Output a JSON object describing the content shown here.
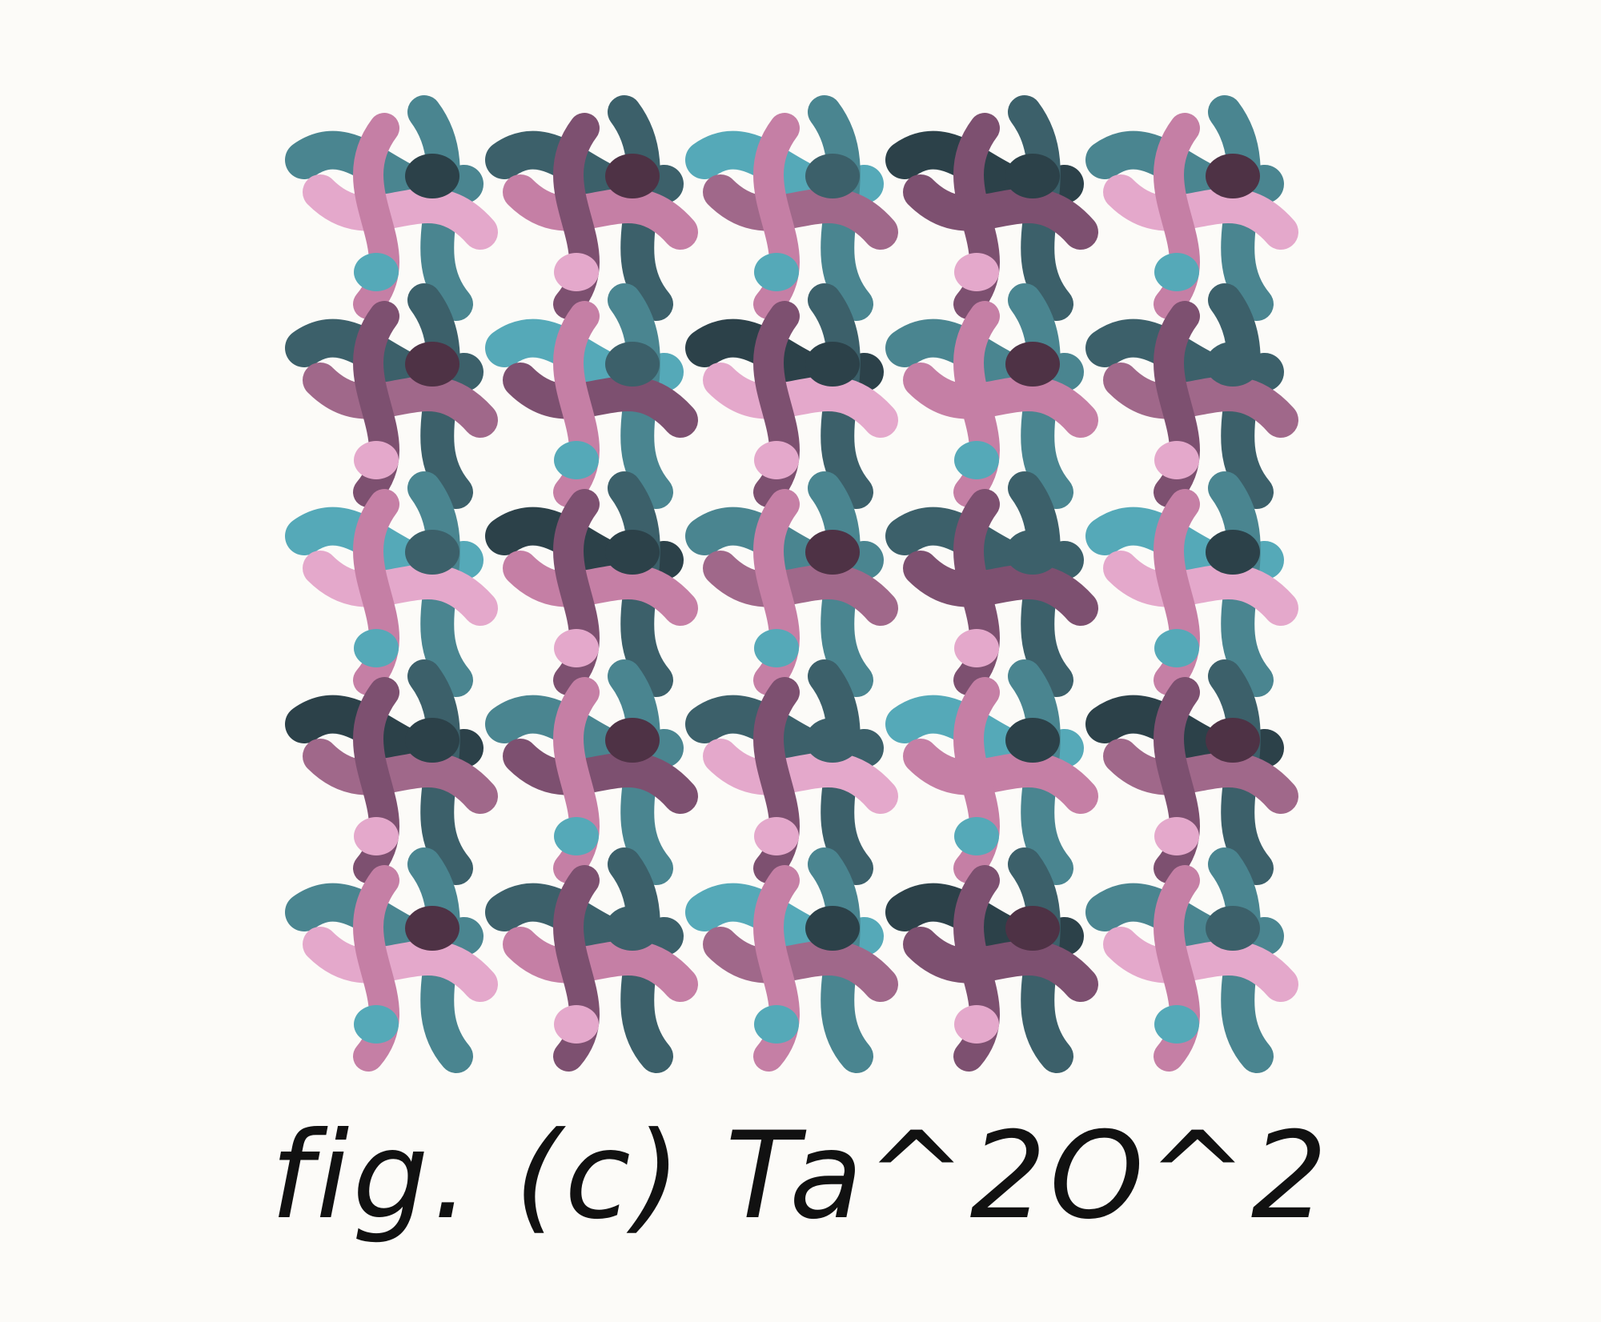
{
  "figure": {
    "caption": "fig. (c) Ta^2O^2",
    "description_type": "gyroid-like periodic lattice illustration",
    "palette": {
      "background": "#fcfbf8",
      "teal_light": "#55a9b8",
      "teal_mid": "#4a8590",
      "teal_dark": "#3c606a",
      "slate": "#2c4149",
      "pink_light": "#e4a8cb",
      "pink_mid": "#c57fa5",
      "mauve": "#a0688a",
      "plum": "#7d5070",
      "dark_plum": "#4e3245"
    }
  }
}
